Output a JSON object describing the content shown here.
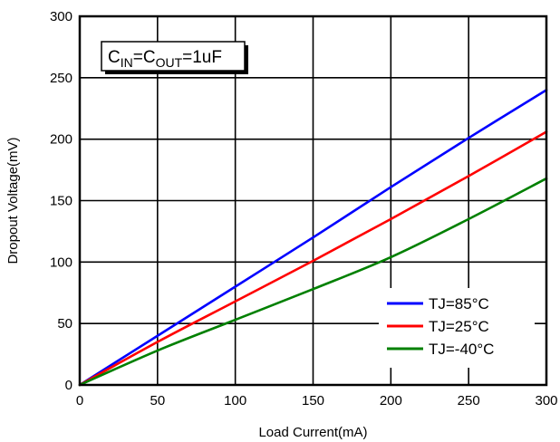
{
  "chart_data": {
    "type": "line",
    "title": "",
    "xlabel": "Load Current(mA)",
    "ylabel": "Dropout Voltage(mV)",
    "xlim": [
      0,
      300
    ],
    "ylim": [
      0,
      300
    ],
    "xticks": [
      "0",
      "50",
      "100",
      "150",
      "200",
      "250",
      "300"
    ],
    "yticks": [
      "0",
      "50",
      "100",
      "150",
      "200",
      "250",
      "300"
    ],
    "grid": true,
    "legend_position": "bottom-right",
    "annotation": {
      "parts": [
        {
          "text": "C",
          "sub": false
        },
        {
          "text": "IN",
          "sub": true
        },
        {
          "text": "=C",
          "sub": false
        },
        {
          "text": "OUT",
          "sub": true
        },
        {
          "text": "=1uF",
          "sub": false
        }
      ]
    },
    "series": [
      {
        "name": "TJ=85°C",
        "color": "#0000ff",
        "x": [
          0,
          50,
          100,
          150,
          200,
          250,
          300
        ],
        "y": [
          0,
          40,
          80,
          120,
          161,
          201,
          240
        ]
      },
      {
        "name": "TJ=25°C",
        "color": "#ff0000",
        "x": [
          0,
          50,
          100,
          150,
          200,
          250,
          300
        ],
        "y": [
          0,
          35,
          68,
          101,
          135,
          170,
          206
        ]
      },
      {
        "name": "TJ=-40°C",
        "color": "#008000",
        "x": [
          0,
          50,
          100,
          150,
          200,
          250,
          300
        ],
        "y": [
          0,
          28,
          53,
          78,
          104,
          135,
          168
        ]
      }
    ]
  }
}
